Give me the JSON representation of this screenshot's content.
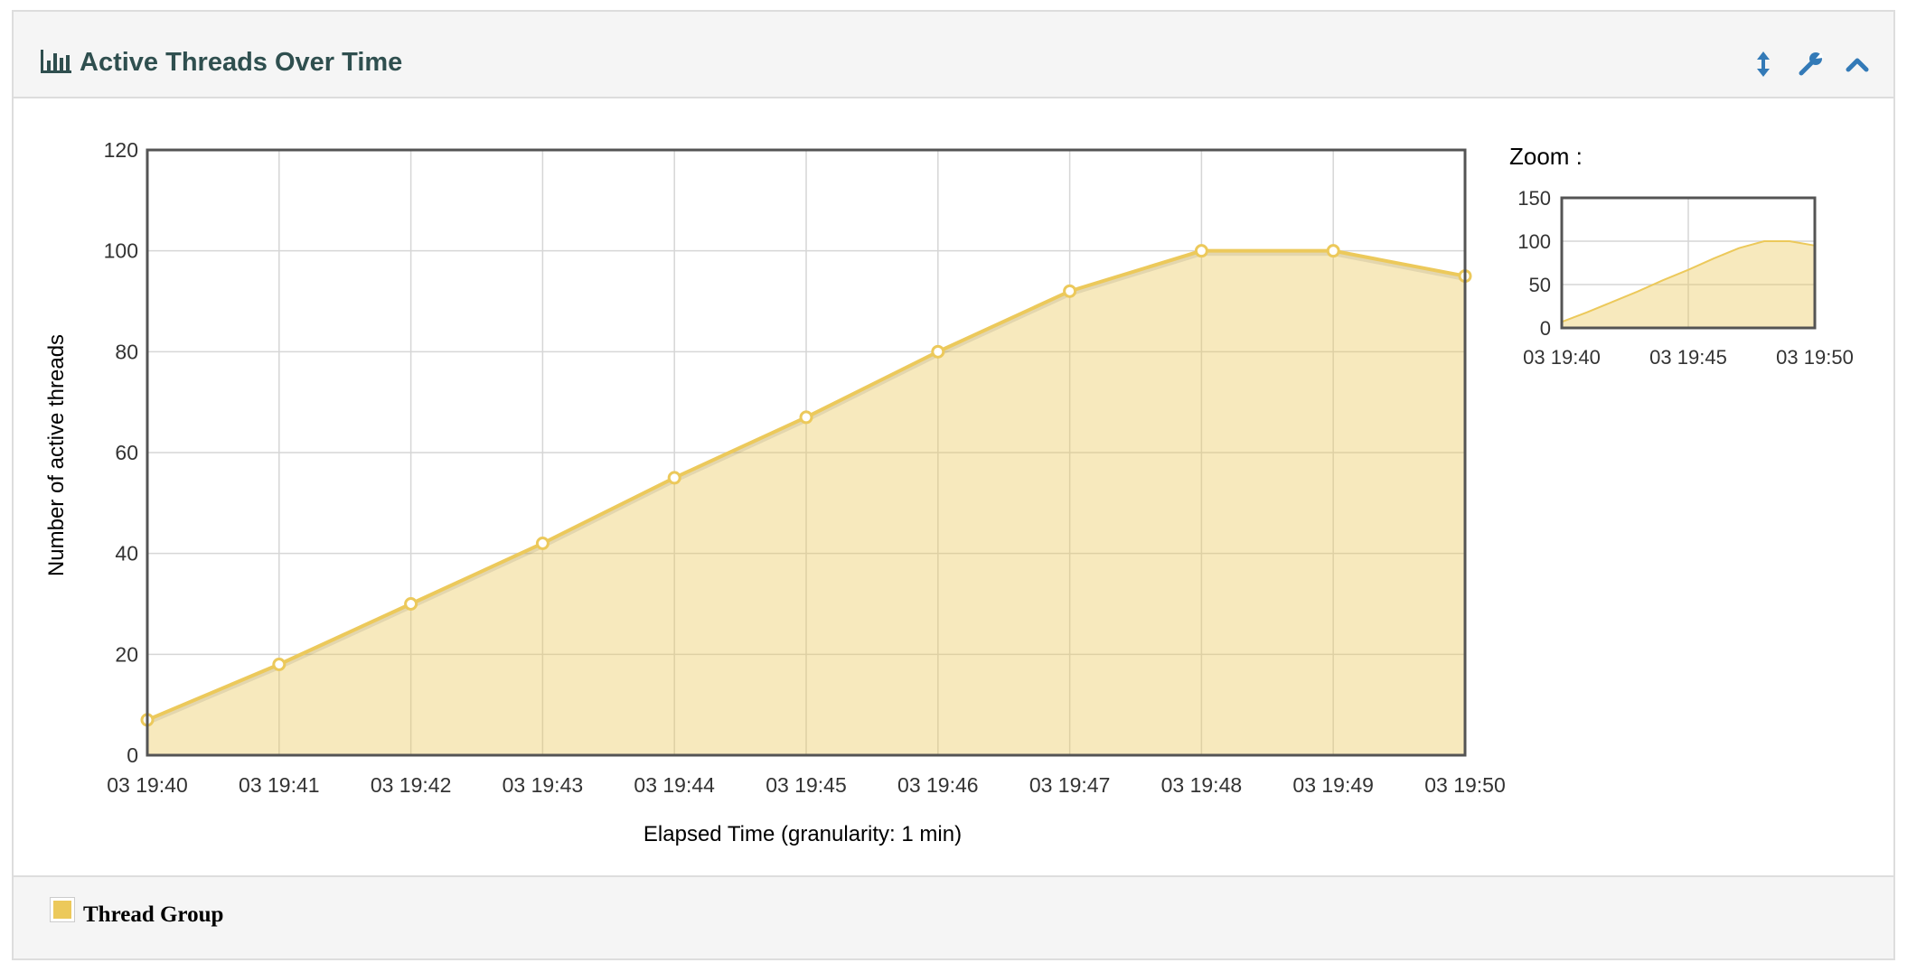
{
  "panel": {
    "title": "Active Threads Over Time",
    "icons": [
      "bar-chart-icon",
      "resize-vertical-icon",
      "wrench-icon",
      "chevron-up-icon"
    ]
  },
  "zoom": {
    "label": "Zoom :",
    "y_ticks": [
      "0",
      "50",
      "100",
      "150"
    ],
    "x_ticks": [
      "03 19:40",
      "03 19:45",
      "03 19:50"
    ],
    "ylim": [
      0,
      150
    ]
  },
  "legend": {
    "items": [
      {
        "label": "Thread Group",
        "color": "#ecc95b"
      }
    ]
  },
  "chart_data": {
    "type": "area",
    "title": "",
    "xlabel": "Elapsed Time (granularity: 1 min)",
    "ylabel": "Number of active threads",
    "x": [
      "03 19:40",
      "03 19:41",
      "03 19:42",
      "03 19:43",
      "03 19:44",
      "03 19:45",
      "03 19:46",
      "03 19:47",
      "03 19:48",
      "03 19:49",
      "03 19:50"
    ],
    "y_ticks": [
      "0",
      "20",
      "40",
      "60",
      "80",
      "100",
      "120"
    ],
    "ylim": [
      0,
      120
    ],
    "grid": true,
    "legend_position": "bottom",
    "series": [
      {
        "name": "Thread Group",
        "color": "#ecc95b",
        "values": [
          7,
          18,
          30,
          42,
          55,
          67,
          80,
          92,
          100,
          100,
          95
        ]
      }
    ]
  }
}
